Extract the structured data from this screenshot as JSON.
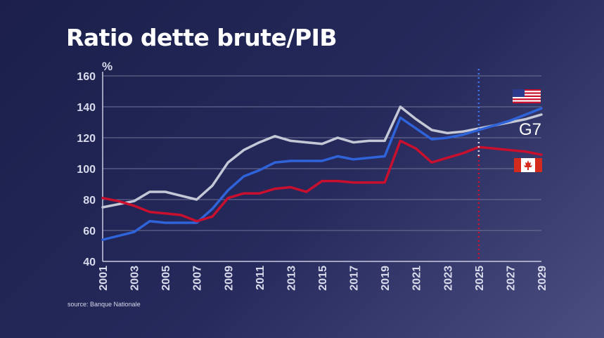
{
  "title": "Ratio dette brute/PIB",
  "source": "source: Banque Nationale",
  "chart_data": {
    "type": "line",
    "title": "Ratio dette brute/PIB",
    "ylabel": "%",
    "xlabel": "",
    "ylim": [
      40,
      160
    ],
    "xlim": [
      2001,
      2029
    ],
    "yticks": [
      40,
      60,
      80,
      100,
      120,
      140,
      160
    ],
    "xticks": [
      2001,
      2003,
      2005,
      2007,
      2009,
      2011,
      2013,
      2015,
      2017,
      2019,
      2021,
      2023,
      2025,
      2027,
      2029
    ],
    "grid": "horizontal",
    "forecast_marker_year": 2025,
    "series": [
      {
        "name": "G7",
        "color": "#c4c8d6",
        "x": [
          2001,
          2003,
          2004,
          2005,
          2007,
          2008,
          2009,
          2010,
          2011,
          2012,
          2013,
          2014,
          2015,
          2016,
          2017,
          2018,
          2019,
          2020,
          2021,
          2022,
          2023,
          2024,
          2025,
          2026,
          2027,
          2028,
          2029
        ],
        "values": [
          75,
          79,
          85,
          85,
          80,
          89,
          104,
          112,
          117,
          121,
          118,
          117,
          116,
          120,
          117,
          118,
          118,
          140,
          132,
          125,
          123,
          124,
          126,
          128,
          130,
          132,
          135
        ]
      },
      {
        "name": "États-Unis",
        "color": "#2f63d9",
        "icon": "us-flag-icon",
        "x": [
          2001,
          2003,
          2004,
          2005,
          2006,
          2007,
          2008,
          2009,
          2010,
          2011,
          2012,
          2013,
          2014,
          2015,
          2016,
          2017,
          2018,
          2019,
          2020,
          2021,
          2022,
          2023,
          2024,
          2025,
          2026,
          2027,
          2028,
          2029
        ],
        "values": [
          54,
          59,
          66,
          65,
          65,
          65,
          74,
          86,
          95,
          99,
          104,
          105,
          105,
          105,
          108,
          106,
          107,
          108,
          133,
          126,
          119,
          120,
          122,
          125,
          128,
          131,
          135,
          139
        ]
      },
      {
        "name": "Canada",
        "color": "#c8102e",
        "icon": "canada-flag-icon",
        "x": [
          2001,
          2002,
          2003,
          2004,
          2005,
          2006,
          2007,
          2008,
          2009,
          2010,
          2011,
          2012,
          2013,
          2014,
          2015,
          2016,
          2017,
          2018,
          2019,
          2020,
          2021,
          2022,
          2023,
          2024,
          2025,
          2026,
          2027,
          2028,
          2029
        ],
        "values": [
          81,
          79,
          76,
          72,
          71,
          70,
          66,
          69,
          81,
          84,
          84,
          87,
          88,
          85,
          92,
          92,
          91,
          91,
          91,
          118,
          113,
          104,
          107,
          110,
          114,
          113,
          112,
          111,
          109
        ]
      }
    ],
    "annotations": [
      {
        "series": "G7",
        "text": "G7"
      }
    ]
  }
}
